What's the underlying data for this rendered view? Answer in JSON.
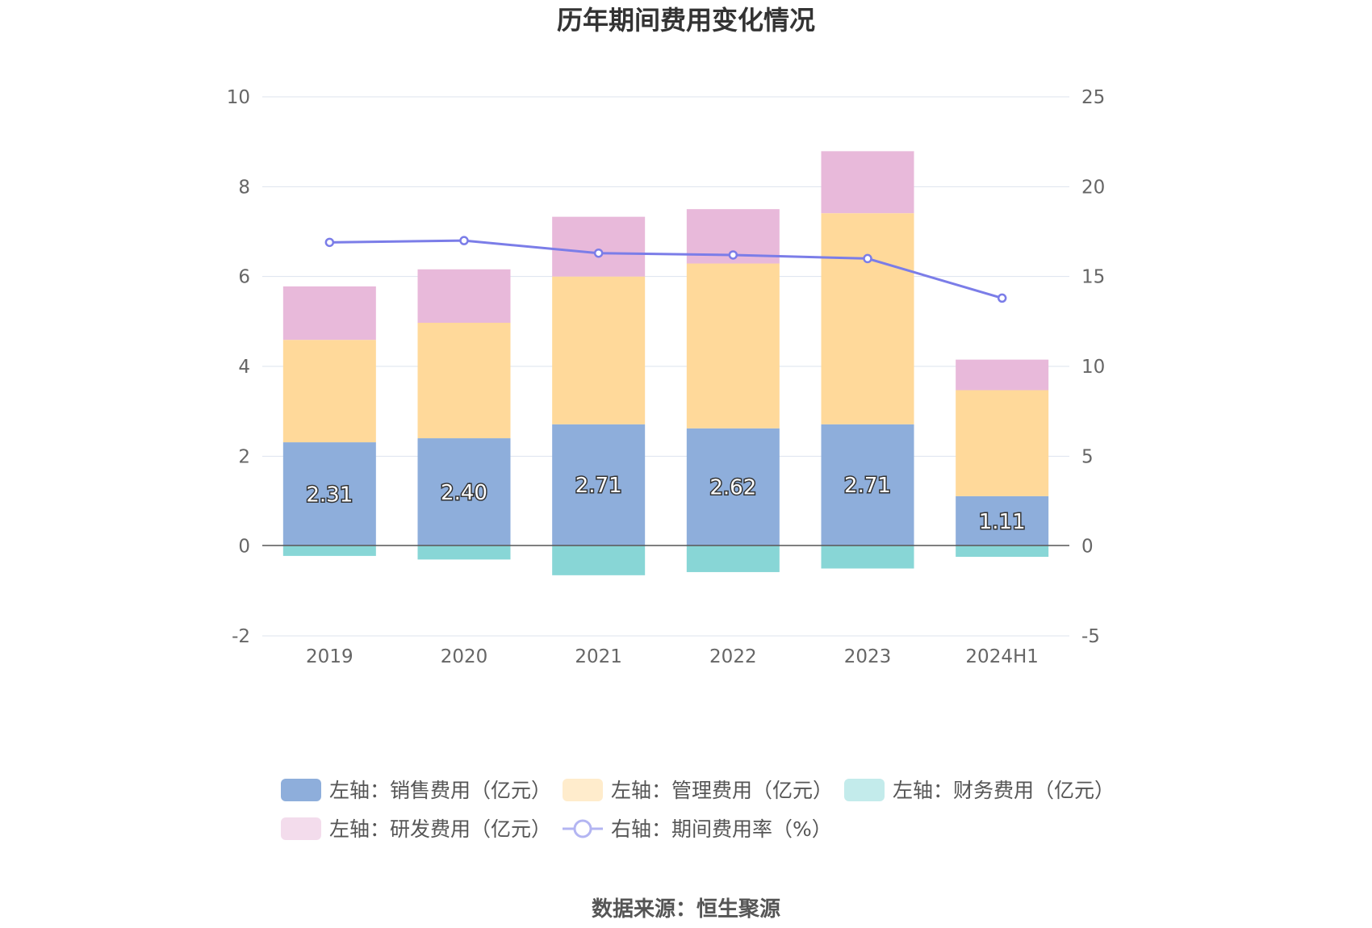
{
  "chart_data": {
    "type": "bar",
    "title": "历年期间费用变化情况",
    "categories": [
      "2019",
      "2020",
      "2021",
      "2022",
      "2023",
      "2024H1"
    ],
    "stacked": true,
    "y_left": {
      "ylim": [
        -2,
        10
      ],
      "ticks": [
        "10",
        "8",
        "6",
        "4",
        "2",
        "0",
        "-2"
      ]
    },
    "y_right": {
      "ylim": [
        -5,
        25
      ],
      "ticks": [
        "25",
        "20",
        "15",
        "10",
        "5",
        "0",
        "-5"
      ]
    },
    "series": [
      {
        "name": "左轴：销售费用（亿元）",
        "axis": "left",
        "color": "#8eaedb",
        "values": [
          2.31,
          2.4,
          2.71,
          2.62,
          2.71,
          1.11
        ],
        "labels": [
          "2.31",
          "2.40",
          "2.71",
          "2.62",
          "2.71",
          "1.11"
        ]
      },
      {
        "name": "左轴：管理费用（亿元）",
        "axis": "left",
        "color": "#ffd99a",
        "values": [
          2.28,
          2.57,
          3.29,
          3.67,
          4.7,
          2.36
        ]
      },
      {
        "name": "左轴：财务费用（亿元）",
        "axis": "left",
        "color": "#88d6d6",
        "values": [
          -0.22,
          -0.3,
          -0.65,
          -0.58,
          -0.5,
          -0.24
        ]
      },
      {
        "name": "左轴：研发费用（亿元）",
        "axis": "left",
        "color": "#e8b9da",
        "values": [
          1.19,
          1.19,
          1.33,
          1.21,
          1.38,
          0.68
        ]
      },
      {
        "name": "右轴：期间费用率（%）",
        "axis": "right",
        "type": "line",
        "color": "#7b7de8",
        "values": [
          16.9,
          17.0,
          16.3,
          16.2,
          16.0,
          13.8
        ]
      }
    ],
    "legend_position": "bottom",
    "grid": true
  },
  "source_text": "数据来源：恒生聚源"
}
